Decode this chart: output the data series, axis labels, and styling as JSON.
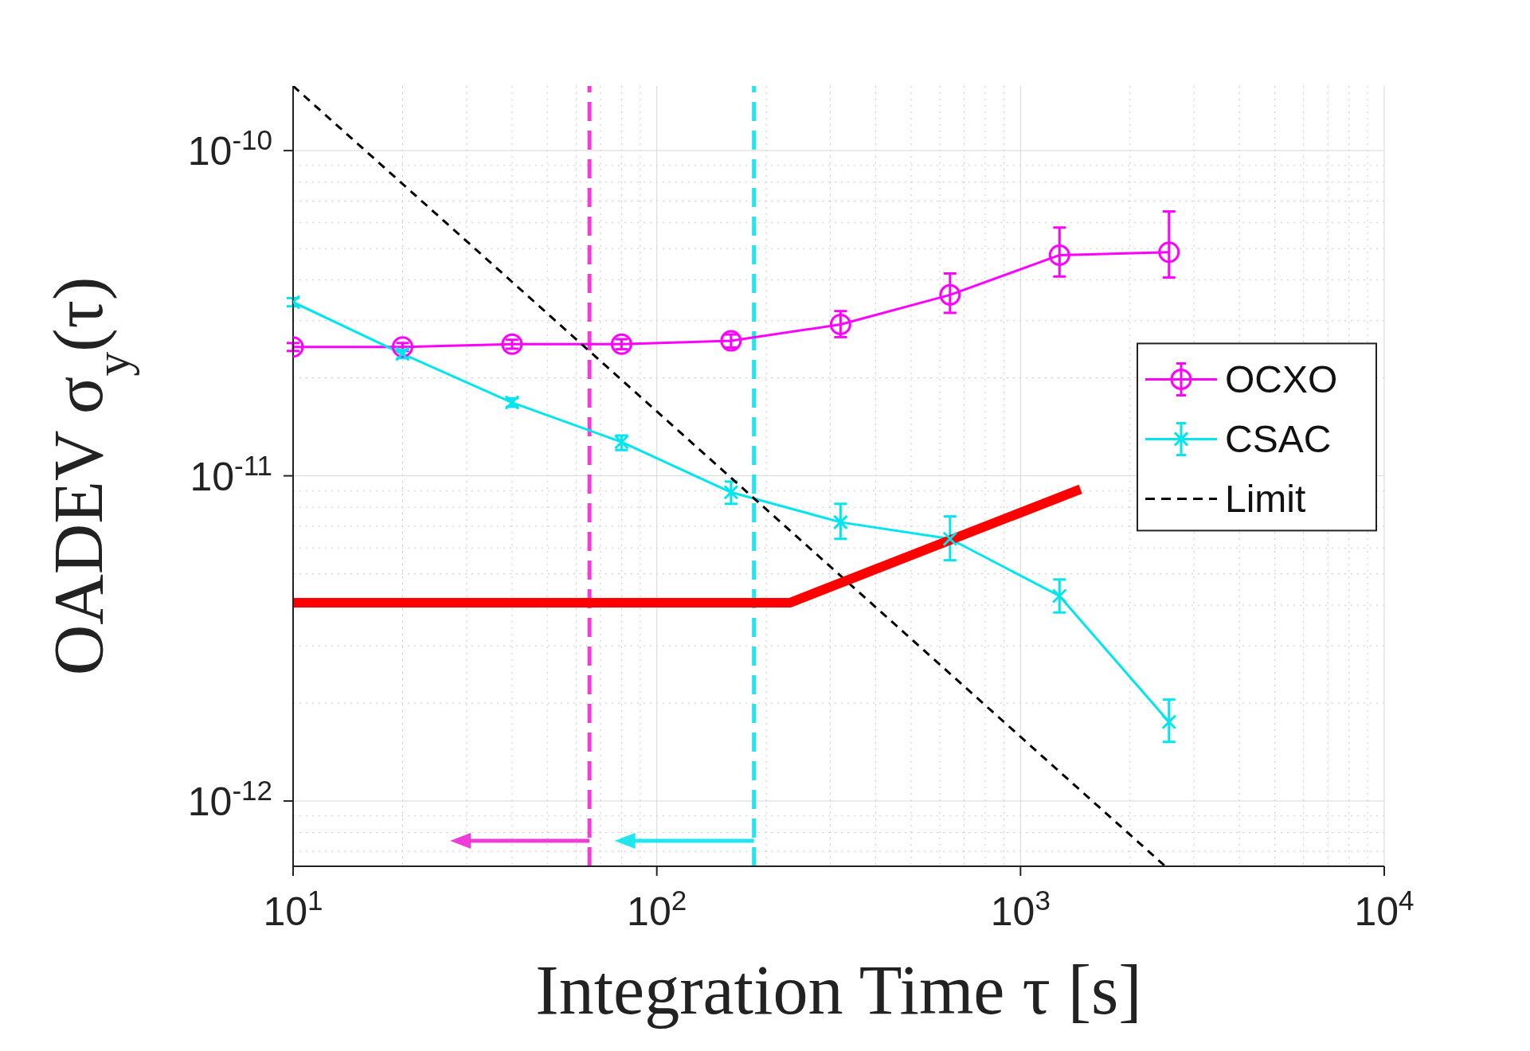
{
  "chart_data": {
    "type": "line",
    "xlabel": "Integration Time τ [s]",
    "ylabel": "OADEV σ$_{y}$(τ)",
    "log": "xy",
    "grid": true,
    "legend": "right",
    "xlim": [
      10,
      10000
    ],
    "ylim": [
      6.3e-13,
      1.58e-10
    ],
    "xticks": [
      {
        "value": 10,
        "label": "10$^{1}$"
      },
      {
        "value": 100,
        "label": "10$^{2}$"
      },
      {
        "value": 1000,
        "label": "10$^{3}$"
      },
      {
        "value": 10000,
        "label": "10$^{4}$"
      }
    ],
    "yticks": [
      {
        "value": 1e-12,
        "label": "10$^{-12}$"
      },
      {
        "value": 1e-11,
        "label": "10$^{-11}$"
      },
      {
        "value": 1e-10,
        "label": "10$^{-10}$"
      }
    ],
    "series": [
      {
        "name": "OCXO",
        "color": "#ff00ff",
        "marker": "circle",
        "x": [
          10,
          20,
          40,
          80,
          160,
          320,
          640,
          1280,
          2560
        ],
        "values": [
          2.49e-11,
          2.49e-11,
          2.54e-11,
          2.54e-11,
          2.6e-11,
          2.92e-11,
          3.6e-11,
          4.77e-11,
          4.87e-11
        ],
        "errors": [
          [
            2.42e-11,
            2.56e-11
          ],
          [
            2.42e-11,
            2.56e-11
          ],
          [
            2.46e-11,
            2.62e-11
          ],
          [
            2.45e-11,
            2.63e-11
          ],
          [
            2.48e-11,
            2.72e-11
          ],
          [
            2.67e-11,
            3.21e-11
          ],
          [
            3.17e-11,
            4.19e-11
          ],
          [
            4.1e-11,
            5.8e-11
          ],
          [
            4.07e-11,
            6.5e-11
          ]
        ]
      },
      {
        "name": "CSAC",
        "color": "#00e5ee",
        "marker": "cross",
        "x": [
          10,
          20,
          40,
          80,
          160,
          320,
          640,
          1280,
          2560
        ],
        "values": [
          3.42e-11,
          2.37e-11,
          1.68e-11,
          1.27e-11,
          8.9e-12,
          7.2e-12,
          6.4e-12,
          4.27e-12,
          1.75e-12
        ],
        "errors": [
          [
            3.32e-11,
            3.52e-11
          ],
          [
            2.3e-11,
            2.44e-11
          ],
          [
            1.63e-11,
            1.73e-11
          ],
          [
            1.2e-11,
            1.33e-11
          ],
          [
            8.2e-12,
            9.6e-12
          ],
          [
            6.4e-12,
            8.2e-12
          ],
          [
            5.5e-12,
            7.5e-12
          ],
          [
            3.8e-12,
            4.8e-12
          ],
          [
            1.52e-12,
            2.05e-12
          ]
        ]
      },
      {
        "name": "Limit",
        "color": "#000000",
        "marker": "none",
        "line_style": "dashed",
        "x": [
          10,
          2500
        ],
        "values": [
          1.58e-10,
          6.3e-13
        ]
      },
      {
        "color": "#ff0000",
        "marker": "none",
        "x": [
          10,
          232,
          1462
        ],
        "values": [
          4.07e-12,
          4.07e-12,
          9.1e-12
        ]
      }
    ],
    "ref_lines": [
      {
        "axis": "x",
        "value": 65.3,
        "color": "#f03cd8",
        "line_style": "dashed"
      },
      {
        "axis": "x",
        "value": 185,
        "color": "#22e5ee",
        "line_style": "dashed"
      }
    ]
  }
}
